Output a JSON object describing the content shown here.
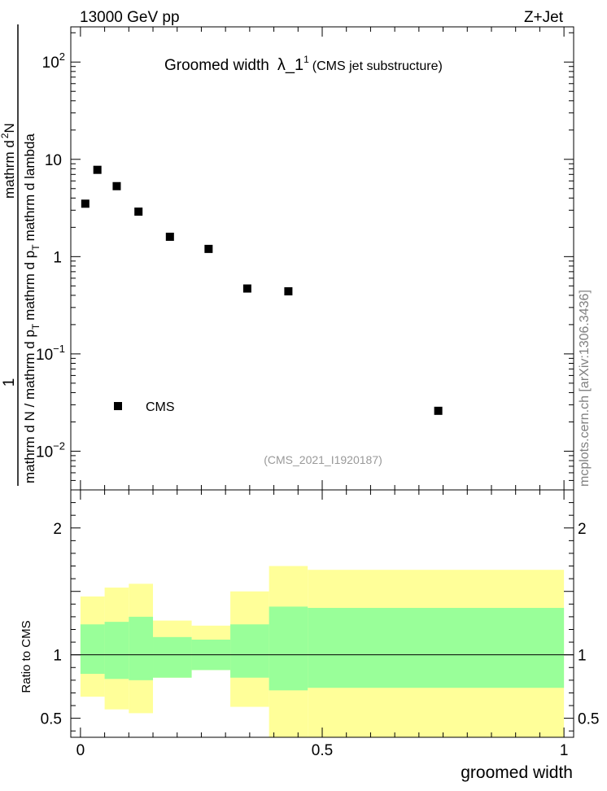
{
  "header": {
    "left_label": "13000 GeV pp",
    "right_label": "Z+Jet",
    "side_label": "mcplots.cern.ch [arXiv:1306.3436]",
    "watermark": "(CMS_2021_I1920187)"
  },
  "chart_data": [
    {
      "type": "scatter",
      "title_main": "Groomed width",
      "title_symbol": "λ_1",
      "title_sup": "1",
      "title_suffix": "(CMS jet substructure)",
      "ylabel_numerator": "1",
      "ylabel_part1": "mathrm d N / mathrm d p",
      "ylabel_sub1": "T",
      "ylabel_part2": "mathrm d p",
      "ylabel_sub2": "T",
      "ylabel_part3": "mathrm d lambda",
      "ylabel_prefix": "mathrm d",
      "ylabel_sup": "2",
      "ylabel_suffix": "N",
      "yscale": "log",
      "ylim": [
        0.004,
        230
      ],
      "xlim": [
        -0.02,
        1.02
      ],
      "y_ticks": [
        {
          "value": 0.01,
          "mant": "10",
          "exp": "−2"
        },
        {
          "value": 0.1,
          "mant": "10",
          "exp": "−1"
        },
        {
          "value": 1,
          "mant": "1",
          "exp": ""
        },
        {
          "value": 10,
          "mant": "10",
          "exp": ""
        },
        {
          "value": 100,
          "mant": "10",
          "exp": "2"
        }
      ],
      "legend": {
        "label": "CMS",
        "position": "bottom-left"
      },
      "series": [
        {
          "name": "CMS",
          "x": [
            0.01,
            0.035,
            0.075,
            0.12,
            0.185,
            0.265,
            0.345,
            0.43,
            0.74
          ],
          "y": [
            3.5,
            7.8,
            5.3,
            2.9,
            1.6,
            1.2,
            0.47,
            0.44,
            0.026
          ]
        }
      ]
    },
    {
      "type": "area",
      "ylabel": "Ratio to CMS",
      "xlabel": "groomed width",
      "ylim": [
        0.35,
        2.3
      ],
      "xlim": [
        -0.02,
        1.02
      ],
      "x_ticks": [
        {
          "value": 0,
          "label": "0"
        },
        {
          "value": 0.5,
          "label": "0.5"
        },
        {
          "value": 1,
          "label": "1"
        }
      ],
      "y_ticks": [
        {
          "value": 0.5,
          "label": "0.5"
        },
        {
          "value": 1,
          "label": "1"
        },
        {
          "value": 2,
          "label": "2"
        }
      ],
      "reference_line": 1,
      "bins": [
        {
          "x0": 0.0,
          "x1": 0.05,
          "inner": [
            0.85,
            1.24
          ],
          "outer": [
            0.67,
            1.46
          ]
        },
        {
          "x0": 0.05,
          "x1": 0.1,
          "inner": [
            0.81,
            1.26
          ],
          "outer": [
            0.57,
            1.53
          ]
        },
        {
          "x0": 0.1,
          "x1": 0.15,
          "inner": [
            0.8,
            1.3
          ],
          "outer": [
            0.54,
            1.56
          ]
        },
        {
          "x0": 0.15,
          "x1": 0.23,
          "inner": [
            0.82,
            1.14
          ],
          "outer": [
            0.82,
            1.27
          ]
        },
        {
          "x0": 0.23,
          "x1": 0.31,
          "inner": [
            0.88,
            1.12
          ],
          "outer": [
            0.88,
            1.23
          ]
        },
        {
          "x0": 0.31,
          "x1": 0.39,
          "inner": [
            0.82,
            1.24
          ],
          "outer": [
            0.59,
            1.5
          ]
        },
        {
          "x0": 0.39,
          "x1": 0.47,
          "inner": [
            0.72,
            1.38
          ],
          "outer": [
            0.35,
            1.7
          ]
        },
        {
          "x0": 0.47,
          "x1": 1.0,
          "inner": [
            0.74,
            1.37
          ],
          "outer": [
            0.35,
            1.67
          ]
        }
      ],
      "colors": {
        "inner": "#99ff99",
        "outer": "#ffff99"
      }
    }
  ]
}
